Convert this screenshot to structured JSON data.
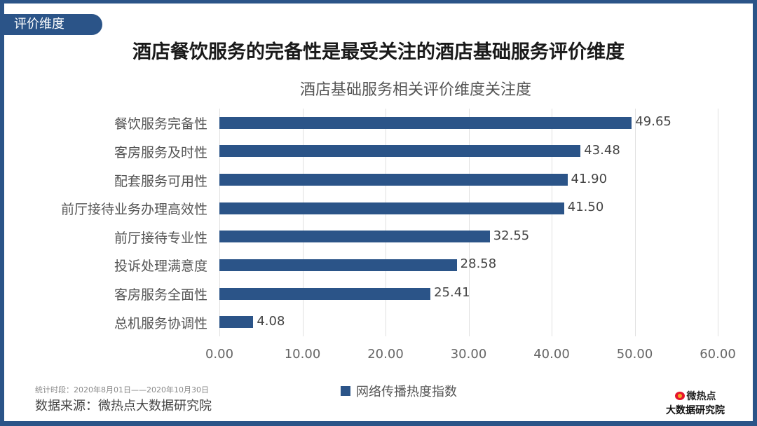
{
  "tag": "评价维度",
  "headline": "酒店餐饮服务的完备性是最受关注的酒店基础服务评价维度",
  "footer": {
    "period": "统计时段：2020年8月01日——2020年10月30日",
    "source": "数据来源：微热点大数据研究院",
    "logo_line1": "微热点",
    "logo_line2": "大数据研究院"
  },
  "colors": {
    "bar": "#2b5488",
    "frame": "#2b5488"
  },
  "chart_data": {
    "type": "bar",
    "orientation": "horizontal",
    "title": "酒店基础服务相关评价维度关注度",
    "xlabel": "",
    "ylabel": "",
    "xlim": [
      0,
      60
    ],
    "xticks": [
      "0.00",
      "10.00",
      "20.00",
      "30.00",
      "40.00",
      "50.00",
      "60.00"
    ],
    "grid": true,
    "legend_position": "bottom",
    "categories": [
      "餐饮服务完备性",
      "客房服务及时性",
      "配套服务可用性",
      "前厅接待业务办理高效性",
      "前厅接待专业性",
      "投诉处理满意度",
      "客房服务全面性",
      "总机服务协调性"
    ],
    "series": [
      {
        "name": "网络传播热度指数",
        "values": [
          49.65,
          43.48,
          41.9,
          41.5,
          32.55,
          28.58,
          25.41,
          4.08
        ]
      }
    ],
    "value_labels": [
      "49.65",
      "43.48",
      "41.90",
      "41.50",
      "32.55",
      "28.58",
      "25.41",
      "4.08"
    ]
  }
}
